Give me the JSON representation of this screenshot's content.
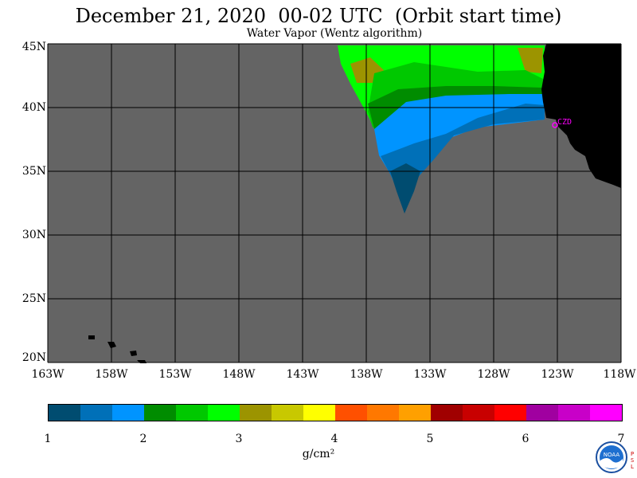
{
  "title": "December 21, 2020  00-02 UTC  (Orbit start time)",
  "subtitle": "Water Vapor (Wentz algorithm)",
  "map": {
    "lon_range": [
      -163,
      -118
    ],
    "lat_range": [
      20,
      45
    ],
    "lat_labels": [
      "45N",
      "40N",
      "35N",
      "30N",
      "25N",
      "20N"
    ],
    "lon_labels": [
      "163W",
      "158W",
      "153W",
      "148W",
      "143W",
      "138W",
      "133W",
      "128W",
      "123W",
      "118W"
    ],
    "colors": {
      "no_data": "#646464",
      "land": "#000000",
      "grid": "#000000",
      "marker": "#ff00ff"
    },
    "station": {
      "label": "CZD",
      "lat": 38.6,
      "lon": -123.2
    }
  },
  "colorbar": {
    "colors": [
      "#004c70",
      "#0070b8",
      "#0094ff",
      "#008c00",
      "#00c800",
      "#00ff00",
      "#9c9400",
      "#c8c800",
      "#ffff00",
      "#ff5000",
      "#ff7800",
      "#ffa000",
      "#a00000",
      "#c80000",
      "#ff0000",
      "#a000a0",
      "#c800c8",
      "#ff00ff"
    ],
    "tick_labels": [
      "1",
      "2",
      "3",
      "4",
      "5",
      "6",
      "7"
    ],
    "unit": "g/cm²"
  },
  "logo": {
    "text": "NOAA",
    "psl": "P\nS\nL"
  }
}
